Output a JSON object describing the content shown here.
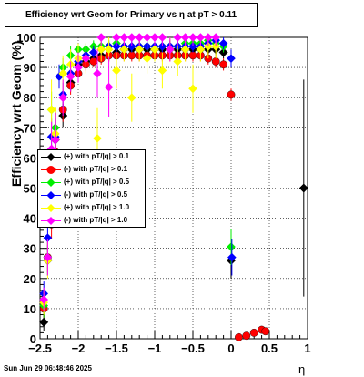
{
  "chart_data": {
    "type": "scatter",
    "title": "Efficiency wrt Geom for Primary vs    η   at pT > 0.11",
    "xlabel": "η",
    "ylabel": "Efficiency wrt Geom (%)",
    "xlim": [
      -2.5,
      1.0
    ],
    "ylim": [
      0,
      100
    ],
    "xticks": [
      "−2.5",
      "−2",
      "−1.5",
      "−1",
      "−0.5",
      "0",
      "0.5",
      "1"
    ],
    "yticks": [
      "0",
      "10",
      "20",
      "30",
      "40",
      "50",
      "60",
      "70",
      "80",
      "90",
      "100"
    ],
    "grid": true,
    "legend_position": "middle-left",
    "footer": "Sun Jun 29 06:48:46 2025",
    "series": [
      {
        "name": "(+) with pT/|q| > 0.1",
        "color": "#000000",
        "points": [
          {
            "x": -2.45,
            "y": 5.5,
            "err": 3
          },
          {
            "x": -2.4,
            "y": 26,
            "err": 5
          },
          {
            "x": -2.3,
            "y": 66,
            "err": 5
          },
          {
            "x": -2.2,
            "y": 74,
            "err": 4
          },
          {
            "x": -2.1,
            "y": 85,
            "err": 3
          },
          {
            "x": -2.0,
            "y": 91,
            "err": 2
          },
          {
            "x": -1.9,
            "y": 92,
            "err": 2
          },
          {
            "x": -1.8,
            "y": 93,
            "err": 2
          },
          {
            "x": -1.7,
            "y": 94,
            "err": 2
          },
          {
            "x": -1.6,
            "y": 94,
            "err": 2
          },
          {
            "x": -1.5,
            "y": 95,
            "err": 2
          },
          {
            "x": -1.4,
            "y": 96,
            "err": 2
          },
          {
            "x": -1.3,
            "y": 96,
            "err": 2
          },
          {
            "x": -1.2,
            "y": 96,
            "err": 2
          },
          {
            "x": -1.1,
            "y": 96,
            "err": 2
          },
          {
            "x": -1.0,
            "y": 96,
            "err": 2
          },
          {
            "x": -0.9,
            "y": 96,
            "err": 2
          },
          {
            "x": -0.8,
            "y": 96,
            "err": 2
          },
          {
            "x": -0.7,
            "y": 96,
            "err": 2
          },
          {
            "x": -0.6,
            "y": 96,
            "err": 2
          },
          {
            "x": -0.5,
            "y": 96,
            "err": 2
          },
          {
            "x": -0.4,
            "y": 96,
            "err": 2
          },
          {
            "x": -0.3,
            "y": 96,
            "err": 2
          },
          {
            "x": -0.2,
            "y": 96,
            "err": 2
          },
          {
            "x": -0.1,
            "y": 95,
            "err": 2
          },
          {
            "x": 0.0,
            "y": 26,
            "err": 6
          },
          {
            "x": 0.95,
            "y": 50,
            "err": 36
          }
        ]
      },
      {
        "name": "(-) with pT/|q| > 0.1",
        "color": "#ff0000",
        "points": [
          {
            "x": -2.45,
            "y": 10,
            "err": 3
          },
          {
            "x": -2.4,
            "y": 27,
            "err": 5
          },
          {
            "x": -2.35,
            "y": 38,
            "err": 5
          },
          {
            "x": -2.3,
            "y": 62,
            "err": 5
          },
          {
            "x": -2.2,
            "y": 76,
            "err": 4
          },
          {
            "x": -2.1,
            "y": 84,
            "err": 3
          },
          {
            "x": -2.0,
            "y": 88,
            "err": 2
          },
          {
            "x": -1.9,
            "y": 91,
            "err": 2
          },
          {
            "x": -1.8,
            "y": 92,
            "err": 2
          },
          {
            "x": -1.7,
            "y": 93,
            "err": 2
          },
          {
            "x": -1.6,
            "y": 94,
            "err": 2
          },
          {
            "x": -1.5,
            "y": 94,
            "err": 2
          },
          {
            "x": -1.4,
            "y": 94,
            "err": 2
          },
          {
            "x": -1.3,
            "y": 94,
            "err": 2
          },
          {
            "x": -1.2,
            "y": 94,
            "err": 2
          },
          {
            "x": -1.1,
            "y": 94,
            "err": 2
          },
          {
            "x": -1.0,
            "y": 94,
            "err": 2
          },
          {
            "x": -0.9,
            "y": 94,
            "err": 2
          },
          {
            "x": -0.8,
            "y": 94,
            "err": 2
          },
          {
            "x": -0.7,
            "y": 94,
            "err": 2
          },
          {
            "x": -0.6,
            "y": 94,
            "err": 2
          },
          {
            "x": -0.5,
            "y": 94,
            "err": 2
          },
          {
            "x": -0.4,
            "y": 94,
            "err": 2
          },
          {
            "x": -0.3,
            "y": 93,
            "err": 2
          },
          {
            "x": -0.2,
            "y": 92,
            "err": 2
          },
          {
            "x": -0.1,
            "y": 91,
            "err": 2
          },
          {
            "x": 0.0,
            "y": 81,
            "err": 2
          },
          {
            "x": 0.1,
            "y": 0.5,
            "err": 1
          },
          {
            "x": 0.2,
            "y": 1,
            "err": 1
          },
          {
            "x": 0.3,
            "y": 2,
            "err": 1
          },
          {
            "x": 0.4,
            "y": 3,
            "err": 1
          },
          {
            "x": 0.45,
            "y": 2.5,
            "err": 1
          }
        ]
      },
      {
        "name": "(+) with pT/|q| > 0.5",
        "color": "#00ee00",
        "points": [
          {
            "x": -2.45,
            "y": 11,
            "err": 4
          },
          {
            "x": -2.4,
            "y": 27,
            "err": 6
          },
          {
            "x": -2.35,
            "y": 76,
            "err": 6
          },
          {
            "x": -2.3,
            "y": 70,
            "err": 5
          },
          {
            "x": -2.2,
            "y": 90,
            "err": 3
          },
          {
            "x": -2.1,
            "y": 94,
            "err": 3
          },
          {
            "x": -2.0,
            "y": 96,
            "err": 2
          },
          {
            "x": -1.9,
            "y": 96,
            "err": 2
          },
          {
            "x": -1.8,
            "y": 97,
            "err": 2
          },
          {
            "x": -1.7,
            "y": 97,
            "err": 2
          },
          {
            "x": -1.6,
            "y": 97,
            "err": 2
          },
          {
            "x": -1.5,
            "y": 98,
            "err": 2
          },
          {
            "x": -1.4,
            "y": 97,
            "err": 2
          },
          {
            "x": -1.3,
            "y": 97,
            "err": 2
          },
          {
            "x": -1.2,
            "y": 97,
            "err": 2
          },
          {
            "x": -1.1,
            "y": 97,
            "err": 2
          },
          {
            "x": -1.0,
            "y": 97,
            "err": 2
          },
          {
            "x": -0.9,
            "y": 97,
            "err": 2
          },
          {
            "x": -0.8,
            "y": 97,
            "err": 2
          },
          {
            "x": -0.7,
            "y": 97,
            "err": 2
          },
          {
            "x": -0.6,
            "y": 98,
            "err": 2
          },
          {
            "x": -0.5,
            "y": 98,
            "err": 2
          },
          {
            "x": -0.4,
            "y": 98,
            "err": 2
          },
          {
            "x": -0.3,
            "y": 99,
            "err": 2
          },
          {
            "x": -0.2,
            "y": 98,
            "err": 2
          },
          {
            "x": -0.1,
            "y": 97,
            "err": 2
          },
          {
            "x": 0.0,
            "y": 30.5,
            "err": 6
          }
        ]
      },
      {
        "name": "(-) with pT/|q| > 0.5",
        "color": "#0000ff",
        "points": [
          {
            "x": -2.45,
            "y": 15,
            "err": 4
          },
          {
            "x": -2.4,
            "y": 33.5,
            "err": 5
          },
          {
            "x": -2.35,
            "y": 67,
            "err": 6
          },
          {
            "x": -2.3,
            "y": 67,
            "err": 6
          },
          {
            "x": -2.25,
            "y": 87,
            "err": 4
          },
          {
            "x": -2.2,
            "y": 81,
            "err": 4
          },
          {
            "x": -2.1,
            "y": 88,
            "err": 3
          },
          {
            "x": -2.0,
            "y": 92,
            "err": 3
          },
          {
            "x": -1.9,
            "y": 94,
            "err": 2
          },
          {
            "x": -1.8,
            "y": 95,
            "err": 2
          },
          {
            "x": -1.7,
            "y": 96,
            "err": 2
          },
          {
            "x": -1.6,
            "y": 97,
            "err": 2
          },
          {
            "x": -1.5,
            "y": 97,
            "err": 2
          },
          {
            "x": -1.4,
            "y": 97,
            "err": 2
          },
          {
            "x": -1.3,
            "y": 97,
            "err": 2
          },
          {
            "x": -1.2,
            "y": 97,
            "err": 2
          },
          {
            "x": -1.1,
            "y": 97,
            "err": 2
          },
          {
            "x": -1.0,
            "y": 97,
            "err": 2
          },
          {
            "x": -0.9,
            "y": 97,
            "err": 2
          },
          {
            "x": -0.8,
            "y": 97,
            "err": 2
          },
          {
            "x": -0.7,
            "y": 97,
            "err": 2
          },
          {
            "x": -0.6,
            "y": 97,
            "err": 2
          },
          {
            "x": -0.5,
            "y": 97,
            "err": 2
          },
          {
            "x": -0.4,
            "y": 97,
            "err": 2
          },
          {
            "x": -0.3,
            "y": 98,
            "err": 2
          },
          {
            "x": -0.2,
            "y": 99,
            "err": 2
          },
          {
            "x": -0.1,
            "y": 98,
            "err": 2
          },
          {
            "x": 0.0,
            "y": 93,
            "err": 3
          },
          {
            "x": 0.01,
            "y": 27,
            "err": 6
          }
        ]
      },
      {
        "name": "(+) with pT/|q| > 1.0",
        "color": "#ffff00",
        "points": [
          {
            "x": -2.45,
            "y": 12,
            "err": 4
          },
          {
            "x": -2.4,
            "y": 26,
            "err": 6
          },
          {
            "x": -2.35,
            "y": 76,
            "err": 10
          },
          {
            "x": -2.3,
            "y": 68,
            "err": 9
          },
          {
            "x": -2.2,
            "y": 88,
            "err": 6
          },
          {
            "x": -2.1,
            "y": 91,
            "err": 5
          },
          {
            "x": -2.0,
            "y": 93,
            "err": 5
          },
          {
            "x": -1.9,
            "y": 93,
            "err": 5
          },
          {
            "x": -1.75,
            "y": 66.5,
            "err": 10
          },
          {
            "x": -1.7,
            "y": 96,
            "err": 4
          },
          {
            "x": -1.6,
            "y": 96,
            "err": 4
          },
          {
            "x": -1.5,
            "y": 89,
            "err": 6
          },
          {
            "x": -1.4,
            "y": 96,
            "err": 4
          },
          {
            "x": -1.3,
            "y": 80,
            "err": 8
          },
          {
            "x": -1.2,
            "y": 96,
            "err": 4
          },
          {
            "x": -1.1,
            "y": 93,
            "err": 5
          },
          {
            "x": -1.0,
            "y": 96,
            "err": 4
          },
          {
            "x": -0.9,
            "y": 89,
            "err": 6
          },
          {
            "x": -0.8,
            "y": 96,
            "err": 4
          },
          {
            "x": -0.7,
            "y": 92,
            "err": 5
          },
          {
            "x": -0.6,
            "y": 96,
            "err": 4
          },
          {
            "x": -0.5,
            "y": 83,
            "err": 8
          },
          {
            "x": -0.4,
            "y": 96,
            "err": 4
          },
          {
            "x": -0.3,
            "y": 97,
            "err": 4
          },
          {
            "x": -0.2,
            "y": 97,
            "err": 4
          }
        ]
      },
      {
        "name": "(-) with pT/|q| > 1.0",
        "color": "#ff00ff",
        "points": [
          {
            "x": -2.45,
            "y": 13,
            "err": 4
          },
          {
            "x": -2.4,
            "y": 27,
            "err": 6
          },
          {
            "x": -2.35,
            "y": 63,
            "err": 9
          },
          {
            "x": -2.3,
            "y": 66,
            "err": 9
          },
          {
            "x": -2.2,
            "y": 80,
            "err": 6
          },
          {
            "x": -2.1,
            "y": 87,
            "err": 5
          },
          {
            "x": -2.0,
            "y": 90,
            "err": 5
          },
          {
            "x": -1.9,
            "y": 93,
            "err": 4
          },
          {
            "x": -1.75,
            "y": 88,
            "err": 8
          },
          {
            "x": -1.7,
            "y": 100,
            "err": 3
          },
          {
            "x": -1.6,
            "y": 83.5,
            "err": 10
          },
          {
            "x": -1.5,
            "y": 100,
            "err": 3
          },
          {
            "x": -1.4,
            "y": 100,
            "err": 3
          },
          {
            "x": -1.3,
            "y": 100,
            "err": 3
          },
          {
            "x": -1.2,
            "y": 100,
            "err": 3
          },
          {
            "x": -1.1,
            "y": 100,
            "err": 3
          },
          {
            "x": -1.0,
            "y": 100,
            "err": 3
          },
          {
            "x": -0.9,
            "y": 100,
            "err": 3
          },
          {
            "x": -0.8,
            "y": 96,
            "err": 4
          },
          {
            "x": -0.7,
            "y": 100,
            "err": 3
          },
          {
            "x": -0.6,
            "y": 100,
            "err": 3
          },
          {
            "x": -0.5,
            "y": 100,
            "err": 3
          },
          {
            "x": -0.4,
            "y": 100,
            "err": 3
          },
          {
            "x": -0.3,
            "y": 100,
            "err": 3
          },
          {
            "x": -0.2,
            "y": 100,
            "err": 3
          }
        ]
      }
    ]
  }
}
